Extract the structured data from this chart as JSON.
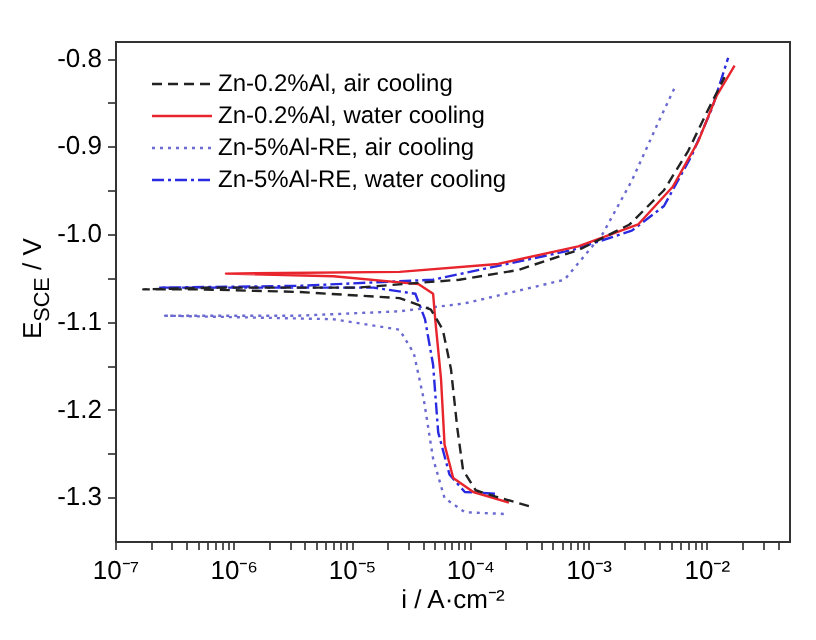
{
  "chart_data": {
    "type": "line",
    "xlabel": "i / A·cm⁻²",
    "ylabel": "E$_{SCE}$ / V",
    "log": "x",
    "legend": "top left",
    "grid": false,
    "marker": "none",
    "xlim": [
      1e-07,
      0.05
    ],
    "ylim": [
      -1.35,
      -0.78
    ],
    "xticks": [
      {
        "value": 1e-07,
        "label": "10⁻⁷"
      },
      {
        "value": 2e-07,
        "label": null
      },
      {
        "value": 3e-07,
        "label": null
      },
      {
        "value": 4e-07,
        "label": null
      },
      {
        "value": 5e-07,
        "label": null
      },
      {
        "value": 6e-07,
        "label": null
      },
      {
        "value": 7e-07,
        "label": null
      },
      {
        "value": 8e-07,
        "label": null
      },
      {
        "value": 9e-07,
        "label": null
      },
      {
        "value": 1e-06,
        "label": "10⁻⁶"
      },
      {
        "value": 2e-06,
        "label": null
      },
      {
        "value": 3e-06,
        "label": null
      },
      {
        "value": 4e-06,
        "label": null
      },
      {
        "value": 5e-06,
        "label": null
      },
      {
        "value": 6e-06,
        "label": null
      },
      {
        "value": 7e-06,
        "label": null
      },
      {
        "value": 8e-06,
        "label": null
      },
      {
        "value": 9e-06,
        "label": null
      },
      {
        "value": 1e-05,
        "label": "10⁻⁵"
      },
      {
        "value": 2e-05,
        "label": null
      },
      {
        "value": 3e-05,
        "label": null
      },
      {
        "value": 4e-05,
        "label": null
      },
      {
        "value": 5e-05,
        "label": null
      },
      {
        "value": 6e-05,
        "label": null
      },
      {
        "value": 7e-05,
        "label": null
      },
      {
        "value": 8e-05,
        "label": null
      },
      {
        "value": 9e-05,
        "label": null
      },
      {
        "value": 0.0001,
        "label": "10⁻⁴"
      },
      {
        "value": 0.0002,
        "label": null
      },
      {
        "value": 0.0003,
        "label": null
      },
      {
        "value": 0.0004,
        "label": null
      },
      {
        "value": 0.0005,
        "label": null
      },
      {
        "value": 0.0006,
        "label": null
      },
      {
        "value": 0.0007,
        "label": null
      },
      {
        "value": 0.0008,
        "label": null
      },
      {
        "value": 0.0009,
        "label": null
      },
      {
        "value": 0.001,
        "label": "10⁻³"
      },
      {
        "value": 0.002,
        "label": null
      },
      {
        "value": 0.003,
        "label": null
      },
      {
        "value": 0.004,
        "label": null
      },
      {
        "value": 0.005,
        "label": null
      },
      {
        "value": 0.006,
        "label": null
      },
      {
        "value": 0.007,
        "label": null
      },
      {
        "value": 0.008,
        "label": null
      },
      {
        "value": 0.009,
        "label": null
      },
      {
        "value": 0.01,
        "label": "10⁻²"
      },
      {
        "value": 0.02,
        "label": null
      },
      {
        "value": 0.03,
        "label": null
      },
      {
        "value": 0.04,
        "label": null
      }
    ],
    "yticks": [
      {
        "value": -0.8,
        "label": "-0.8"
      },
      {
        "value": -0.85,
        "label": null
      },
      {
        "value": -0.9,
        "label": "-0.9"
      },
      {
        "value": -0.95,
        "label": null
      },
      {
        "value": -1.0,
        "label": "-1.0"
      },
      {
        "value": -1.05,
        "label": null
      },
      {
        "value": -1.1,
        "label": "-1.1"
      },
      {
        "value": -1.15,
        "label": null
      },
      {
        "value": -1.2,
        "label": "-1.2"
      },
      {
        "value": -1.25,
        "label": null
      },
      {
        "value": -1.3,
        "label": "-1.3"
      }
    ],
    "series": [
      {
        "name": "Zn-0.2%Al, air cooling",
        "color": "#222222",
        "line_style": "dashed",
        "x": [
          0.00031,
          0.00016,
          0.00011,
          8.6e-05,
          7.7e-05,
          6.8e-05,
          5.8e-05,
          4.6e-05,
          2.5e-05,
          3.6e-06,
          5.1e-07,
          1.7e-07,
          7.5e-07,
          1.1e-05,
          8e-05,
          0.00025,
          0.00082,
          0.0022,
          0.0043,
          0.0069,
          0.01,
          0.014
        ],
        "values": [
          -1.309,
          -1.298,
          -1.291,
          -1.268,
          -1.221,
          -1.153,
          -1.108,
          -1.085,
          -1.072,
          -1.065,
          -1.062,
          -1.062,
          -1.06,
          -1.06,
          -1.051,
          -1.04,
          -1.017,
          -0.988,
          -0.949,
          -0.904,
          -0.859,
          -0.82
        ]
      },
      {
        "name": "Zn-0.2%Al, water cooling",
        "color": "#e8242c",
        "line_style": "solid",
        "x": [
          0.00021,
          0.000105,
          7.1e-05,
          6e-05,
          5.6e-05,
          5e-05,
          4.8e-05,
          3.6e-05,
          6.9e-06,
          8.5e-07,
          2.5e-05,
          0.00017,
          0.00081,
          0.0026,
          0.0051,
          0.0084,
          0.012,
          0.017
        ],
        "values": [
          -1.305,
          -1.293,
          -1.277,
          -1.239,
          -1.164,
          -1.096,
          -1.067,
          -1.056,
          -1.047,
          -1.044,
          -1.042,
          -1.033,
          -1.013,
          -0.988,
          -0.945,
          -0.893,
          -0.841,
          -0.807
        ]
      },
      {
        "name": "Zn-5%Al-RE, air cooling",
        "color": "#6a6ad0",
        "line_style": "dotted",
        "x": [
          0.00019,
          8.9e-05,
          6e-05,
          4.8e-05,
          4e-05,
          3.3e-05,
          2.5e-05,
          6.9e-06,
          2.6e-07,
          3.5e-06,
          2.5e-05,
          8.9e-05,
          0.00062,
          0.0013,
          0.0023,
          0.0039,
          0.0053
        ],
        "values": [
          -1.318,
          -1.316,
          -1.3,
          -1.255,
          -1.187,
          -1.135,
          -1.108,
          -1.096,
          -1.092,
          -1.092,
          -1.087,
          -1.078,
          -1.051,
          -0.999,
          -0.938,
          -0.87,
          -0.832
        ]
      },
      {
        "name": "Zn-5%Al-RE, water cooling",
        "color": "#2a2ae0",
        "line_style": "dashdot",
        "x": [
          0.00016,
          8.9e-05,
          6.6e-05,
          5.3e-05,
          4.8e-05,
          4.1e-05,
          3.4e-05,
          1.5e-05,
          2.3e-07,
          3.5e-06,
          4.8e-05,
          0.00073,
          0.0023,
          0.0043,
          0.0074,
          0.011,
          0.015
        ],
        "values": [
          -1.295,
          -1.293,
          -1.273,
          -1.225,
          -1.148,
          -1.096,
          -1.067,
          -1.06,
          -1.06,
          -1.058,
          -1.051,
          -1.017,
          -0.995,
          -0.967,
          -0.909,
          -0.855,
          -0.798
        ]
      }
    ]
  }
}
